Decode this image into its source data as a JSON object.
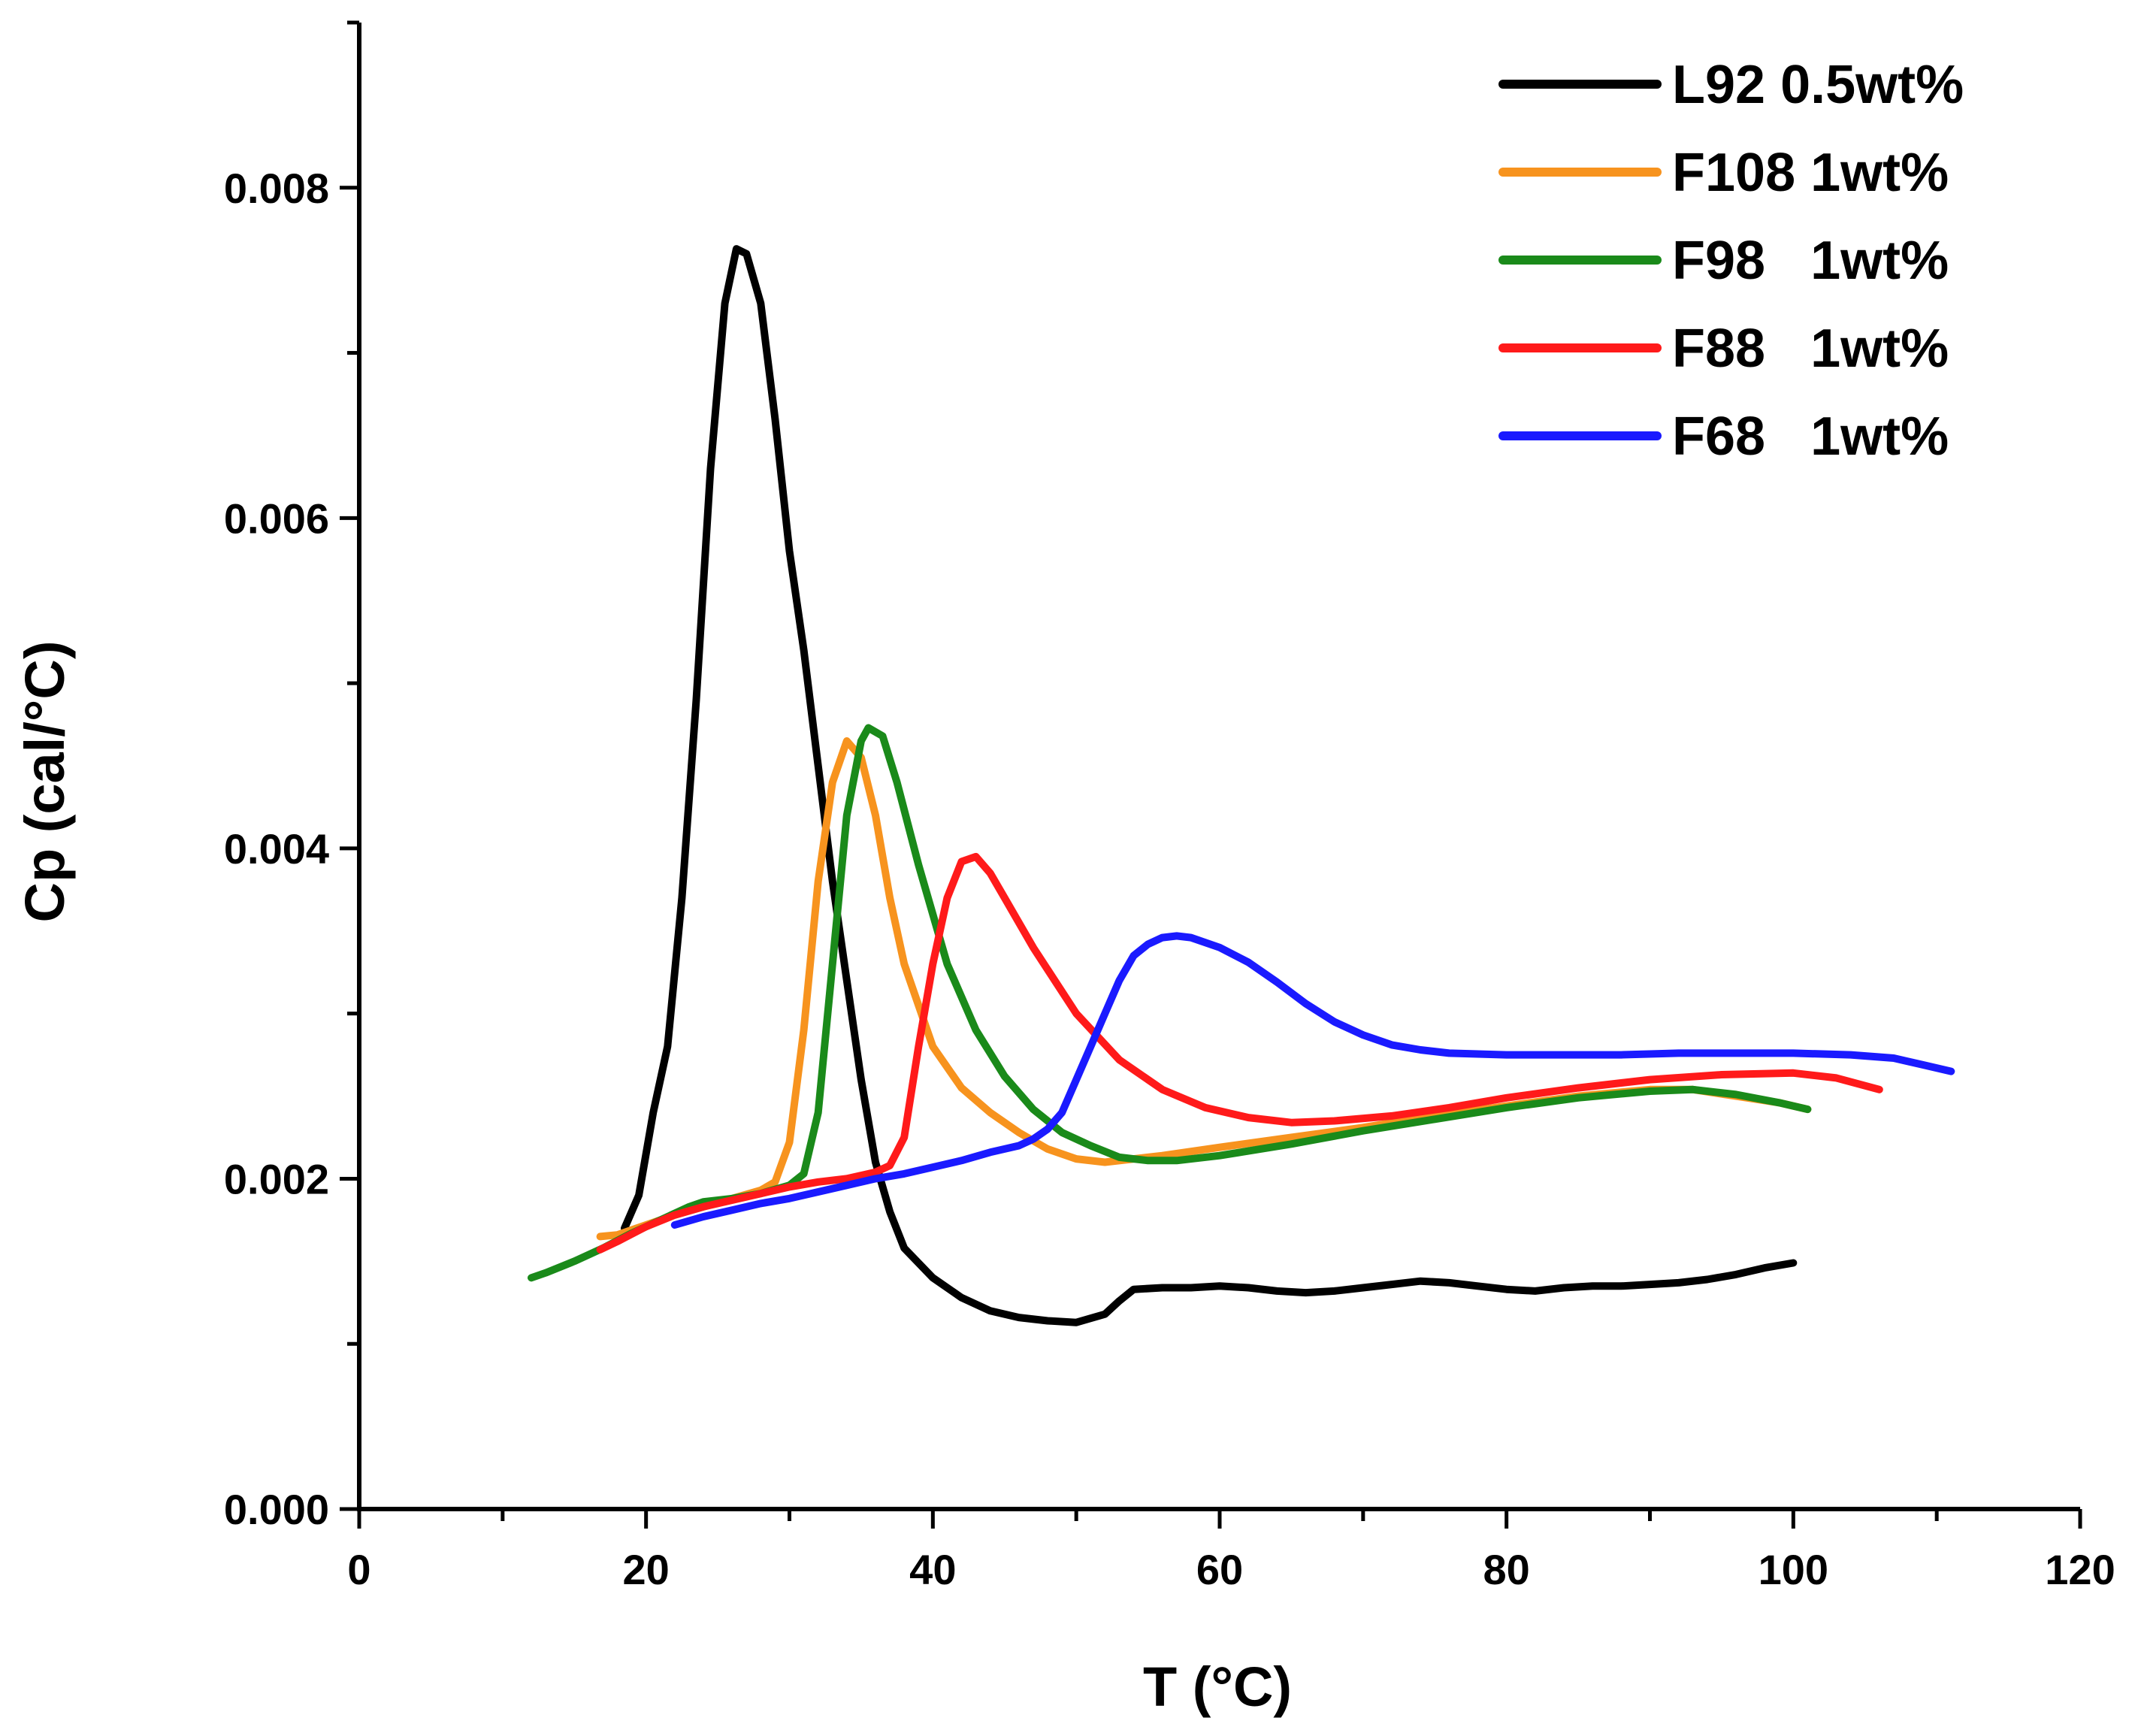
{
  "chart_data": {
    "type": "line",
    "title": "",
    "xlabel": "T (°C)",
    "ylabel": "Cp (cal/°C)",
    "xlim": [
      0,
      120
    ],
    "ylim": [
      0,
      0.009
    ],
    "xticks": [
      0,
      20,
      40,
      60,
      80,
      100,
      120
    ],
    "xtick_labels": [
      "0",
      "20",
      "40",
      "60",
      "80",
      "100",
      "120"
    ],
    "yticks": [
      0,
      0.002,
      0.004,
      0.006,
      0.008
    ],
    "ytick_labels": [
      "0.000",
      "0.002",
      "0.004",
      "0.006",
      "0.008"
    ],
    "grid": false,
    "legend_position": "top-right",
    "series": [
      {
        "name": "L92 0.5wt%",
        "color": "#000000",
        "points": [
          [
            18.5,
            0.0017
          ],
          [
            19.5,
            0.0019
          ],
          [
            20.5,
            0.0024
          ],
          [
            21.5,
            0.0028
          ],
          [
            22.5,
            0.0037
          ],
          [
            23.5,
            0.0049
          ],
          [
            24.5,
            0.0063
          ],
          [
            25.5,
            0.0073
          ],
          [
            26.3,
            0.00763
          ],
          [
            27,
            0.0076
          ],
          [
            28,
            0.0073
          ],
          [
            29,
            0.0066
          ],
          [
            30,
            0.0058
          ],
          [
            31,
            0.0052
          ],
          [
            32,
            0.0045
          ],
          [
            33,
            0.0038
          ],
          [
            34,
            0.0032
          ],
          [
            35,
            0.0026
          ],
          [
            36,
            0.0021
          ],
          [
            37,
            0.0018
          ],
          [
            38,
            0.00158
          ],
          [
            40,
            0.0014
          ],
          [
            42,
            0.00128
          ],
          [
            44,
            0.0012
          ],
          [
            46,
            0.00116
          ],
          [
            48,
            0.00114
          ],
          [
            50,
            0.00113
          ],
          [
            52,
            0.00118
          ],
          [
            53,
            0.00126
          ],
          [
            54,
            0.00133
          ],
          [
            56,
            0.00134
          ],
          [
            58,
            0.00134
          ],
          [
            60,
            0.00135
          ],
          [
            62,
            0.00134
          ],
          [
            64,
            0.00132
          ],
          [
            66,
            0.00131
          ],
          [
            68,
            0.00132
          ],
          [
            70,
            0.00134
          ],
          [
            72,
            0.00136
          ],
          [
            74,
            0.00138
          ],
          [
            76,
            0.00137
          ],
          [
            78,
            0.00135
          ],
          [
            80,
            0.00133
          ],
          [
            82,
            0.00132
          ],
          [
            84,
            0.00134
          ],
          [
            86,
            0.00135
          ],
          [
            88,
            0.00135
          ],
          [
            90,
            0.00136
          ],
          [
            92,
            0.00137
          ],
          [
            94,
            0.00139
          ],
          [
            96,
            0.00142
          ],
          [
            98,
            0.00146
          ],
          [
            100,
            0.00149
          ]
        ]
      },
      {
        "name": "F108 1wt%",
        "color": "#f7931e",
        "points": [
          [
            16.8,
            0.00165
          ],
          [
            18,
            0.00166
          ],
          [
            20,
            0.00172
          ],
          [
            22,
            0.00178
          ],
          [
            24,
            0.00183
          ],
          [
            26,
            0.00188
          ],
          [
            28,
            0.00193
          ],
          [
            29,
            0.00198
          ],
          [
            30,
            0.00222
          ],
          [
            31,
            0.0029
          ],
          [
            32,
            0.0038
          ],
          [
            33,
            0.0044
          ],
          [
            34,
            0.00465
          ],
          [
            35,
            0.00455
          ],
          [
            36,
            0.0042
          ],
          [
            37,
            0.0037
          ],
          [
            38,
            0.0033
          ],
          [
            40,
            0.0028
          ],
          [
            42,
            0.00255
          ],
          [
            44,
            0.0024
          ],
          [
            46,
            0.00228
          ],
          [
            48,
            0.00218
          ],
          [
            50,
            0.00212
          ],
          [
            52,
            0.0021
          ],
          [
            54,
            0.00212
          ],
          [
            56,
            0.00214
          ],
          [
            60,
            0.00219
          ],
          [
            65,
            0.00225
          ],
          [
            70,
            0.00231
          ],
          [
            75,
            0.00238
          ],
          [
            80,
            0.00244
          ],
          [
            85,
            0.0025
          ],
          [
            90,
            0.00254
          ],
          [
            93,
            0.00254
          ],
          [
            96,
            0.0025
          ],
          [
            99,
            0.00246
          ],
          [
            101,
            0.00242
          ]
        ]
      },
      {
        "name": "F98   1wt%",
        "color": "#1a8a1a",
        "points": [
          [
            12,
            0.0014
          ],
          [
            13,
            0.00143
          ],
          [
            15,
            0.0015
          ],
          [
            17,
            0.00158
          ],
          [
            19,
            0.00167
          ],
          [
            21,
            0.00175
          ],
          [
            23,
            0.00183
          ],
          [
            24,
            0.00186
          ],
          [
            26,
            0.00188
          ],
          [
            28,
            0.00191
          ],
          [
            30,
            0.00196
          ],
          [
            31,
            0.00203
          ],
          [
            32,
            0.0024
          ],
          [
            33,
            0.0033
          ],
          [
            34,
            0.0042
          ],
          [
            35,
            0.00465
          ],
          [
            35.5,
            0.00473
          ],
          [
            36.5,
            0.00468
          ],
          [
            37.5,
            0.0044
          ],
          [
            39,
            0.0039
          ],
          [
            41,
            0.0033
          ],
          [
            43,
            0.0029
          ],
          [
            45,
            0.00262
          ],
          [
            47,
            0.00242
          ],
          [
            49,
            0.00228
          ],
          [
            51,
            0.0022
          ],
          [
            53,
            0.00213
          ],
          [
            55,
            0.00211
          ],
          [
            57,
            0.00211
          ],
          [
            60,
            0.00214
          ],
          [
            65,
            0.00221
          ],
          [
            70,
            0.00229
          ],
          [
            75,
            0.00236
          ],
          [
            80,
            0.00243
          ],
          [
            85,
            0.00249
          ],
          [
            90,
            0.00253
          ],
          [
            93,
            0.00254
          ],
          [
            96,
            0.00251
          ],
          [
            99,
            0.00246
          ],
          [
            101,
            0.00242
          ]
        ]
      },
      {
        "name": "F88   1wt%",
        "color": "#ff1a1a",
        "points": [
          [
            16.8,
            0.00157
          ],
          [
            18,
            0.00162
          ],
          [
            20,
            0.00171
          ],
          [
            22,
            0.00178
          ],
          [
            24,
            0.00183
          ],
          [
            26,
            0.00187
          ],
          [
            28,
            0.00191
          ],
          [
            30,
            0.00195
          ],
          [
            32,
            0.00198
          ],
          [
            34,
            0.002
          ],
          [
            36,
            0.00204
          ],
          [
            37,
            0.00208
          ],
          [
            38,
            0.00225
          ],
          [
            39,
            0.0028
          ],
          [
            40,
            0.0033
          ],
          [
            41,
            0.0037
          ],
          [
            42,
            0.00392
          ],
          [
            43,
            0.00395
          ],
          [
            44,
            0.00385
          ],
          [
            45,
            0.0037
          ],
          [
            47,
            0.0034
          ],
          [
            50,
            0.003
          ],
          [
            53,
            0.00272
          ],
          [
            56,
            0.00254
          ],
          [
            59,
            0.00243
          ],
          [
            62,
            0.00237
          ],
          [
            65,
            0.00234
          ],
          [
            68,
            0.00235
          ],
          [
            72,
            0.00238
          ],
          [
            76,
            0.00243
          ],
          [
            80,
            0.00249
          ],
          [
            85,
            0.00255
          ],
          [
            90,
            0.0026
          ],
          [
            95,
            0.00263
          ],
          [
            100,
            0.00264
          ],
          [
            103,
            0.00261
          ],
          [
            106,
            0.00254
          ]
        ]
      },
      {
        "name": "F68   1wt%",
        "color": "#1a1aff",
        "points": [
          [
            22,
            0.00172
          ],
          [
            24,
            0.00177
          ],
          [
            26,
            0.00181
          ],
          [
            28,
            0.00185
          ],
          [
            30,
            0.00188
          ],
          [
            32,
            0.00192
          ],
          [
            34,
            0.00196
          ],
          [
            36,
            0.002
          ],
          [
            38,
            0.00203
          ],
          [
            40,
            0.00207
          ],
          [
            42,
            0.00211
          ],
          [
            44,
            0.00216
          ],
          [
            46,
            0.0022
          ],
          [
            47,
            0.00224
          ],
          [
            48,
            0.0023
          ],
          [
            49,
            0.0024
          ],
          [
            50,
            0.0026
          ],
          [
            51,
            0.0028
          ],
          [
            52,
            0.003
          ],
          [
            53,
            0.0032
          ],
          [
            54,
            0.00335
          ],
          [
            55,
            0.00342
          ],
          [
            56,
            0.00346
          ],
          [
            57,
            0.00347
          ],
          [
            58,
            0.00346
          ],
          [
            60,
            0.0034
          ],
          [
            62,
            0.00331
          ],
          [
            64,
            0.00319
          ],
          [
            66,
            0.00306
          ],
          [
            68,
            0.00295
          ],
          [
            70,
            0.00287
          ],
          [
            72,
            0.00281
          ],
          [
            74,
            0.00278
          ],
          [
            76,
            0.00276
          ],
          [
            80,
            0.00275
          ],
          [
            84,
            0.00275
          ],
          [
            88,
            0.00275
          ],
          [
            92,
            0.00276
          ],
          [
            96,
            0.00276
          ],
          [
            100,
            0.00276
          ],
          [
            104,
            0.00275
          ],
          [
            107,
            0.00273
          ],
          [
            109,
            0.00269
          ],
          [
            111,
            0.00265
          ]
        ]
      }
    ]
  }
}
